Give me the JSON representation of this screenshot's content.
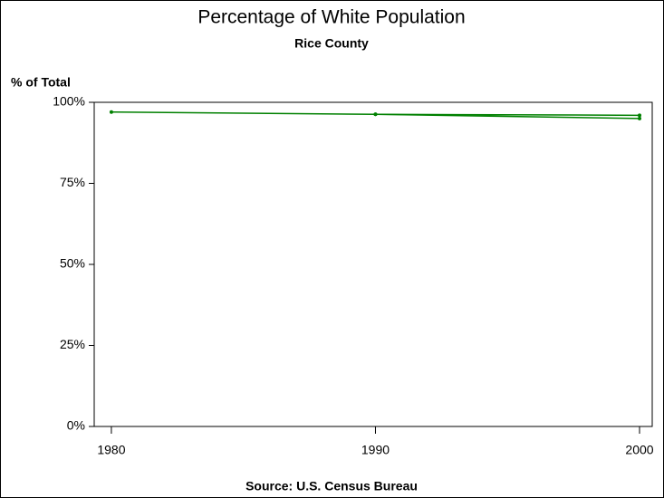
{
  "chart_data": {
    "type": "line",
    "title": "Percentage of White Population",
    "subtitle": "Rice County",
    "y_label": "% of Total",
    "footnote": "Source: U.S. Census Bureau",
    "x": [
      1980,
      1990,
      2000
    ],
    "series": [
      {
        "color": "#008000",
        "values": [
          97,
          96.3,
          96
        ]
      },
      {
        "color": "#008000",
        "values": [
          null,
          96.3,
          95
        ]
      }
    ],
    "xlim": [
      1979.35,
      2000.48
    ],
    "xticks": [
      1980,
      1990,
      2000
    ],
    "ylim": [
      0,
      100
    ],
    "yticks": [
      {
        "value": 0,
        "label": "0%"
      },
      {
        "value": 25,
        "label": "25%"
      },
      {
        "value": 50,
        "label": "50%"
      },
      {
        "value": 75,
        "label": "75%"
      },
      {
        "value": 100,
        "label": "100%"
      }
    ]
  }
}
